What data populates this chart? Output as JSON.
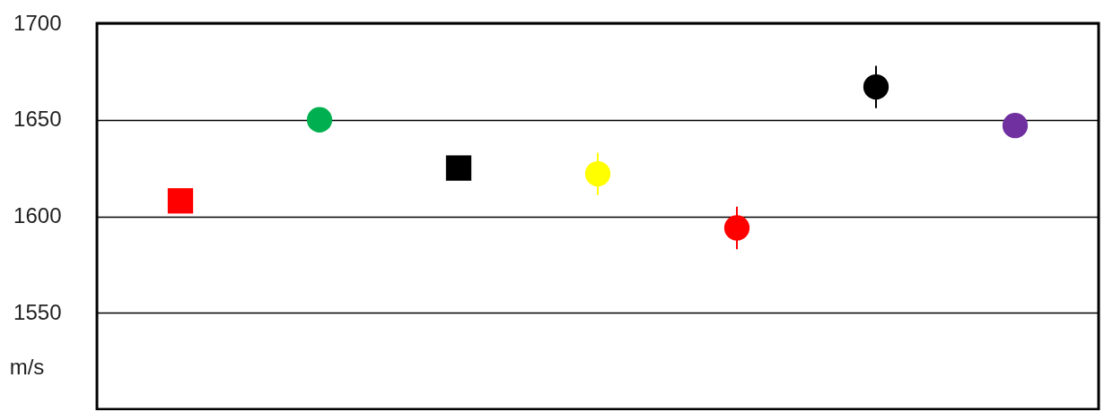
{
  "chart_data": {
    "type": "scatter",
    "ylabel": "m/s",
    "categories": [
      null,
      null,
      null,
      null,
      null,
      null,
      null
    ],
    "series": [
      {
        "marker": "square",
        "colors": [
          "#ff0000",
          null,
          "#000000",
          null,
          null,
          null,
          null
        ],
        "values": [
          1608,
          null,
          1625,
          null,
          null,
          null,
          null
        ]
      },
      {
        "marker": "circle",
        "colors": [
          null,
          "#00b050",
          null,
          "#ffff00",
          "#ff0000",
          "#000000",
          "#7030a0"
        ],
        "values": [
          null,
          1650,
          null,
          1622,
          1594,
          1667,
          1647
        ],
        "errors": [
          null,
          null,
          null,
          11,
          11,
          11,
          null
        ]
      }
    ],
    "ylim": [
      1500,
      1700
    ],
    "yticks": [
      1550,
      1600,
      1650,
      1700
    ],
    "grid": "y",
    "tick_labels": "y"
  }
}
